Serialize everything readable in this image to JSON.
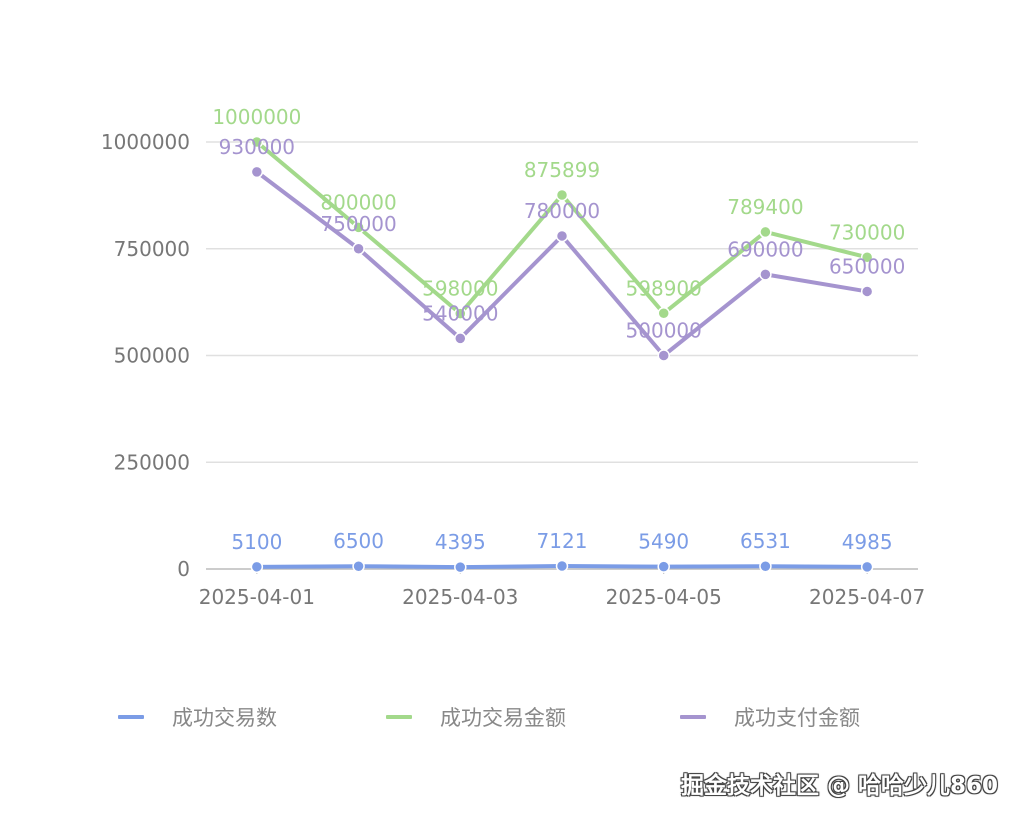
{
  "chart_data": {
    "type": "line",
    "title": "",
    "xlabel": "",
    "ylabel": "",
    "categories": [
      "2025-04-01",
      "2025-04-02",
      "2025-04-03",
      "2025-04-04",
      "2025-04-05",
      "2025-04-06",
      "2025-04-07"
    ],
    "x_tick_labels": [
      "2025-04-01",
      "2025-04-03",
      "2025-04-05",
      "2025-04-07"
    ],
    "y_ticks": [
      0,
      250000,
      500000,
      750000,
      1000000
    ],
    "y_tick_labels": [
      "0",
      "250000",
      "500000",
      "750000",
      "1000000"
    ],
    "ylim": [
      0,
      1000000
    ],
    "grid": true,
    "legend_position": "bottom",
    "series": [
      {
        "name": "成功交易数",
        "color": "#7b9ce6",
        "values": [
          5100,
          6500,
          4395,
          7121,
          5490,
          6531,
          4985
        ],
        "labels_above": true
      },
      {
        "name": "成功交易金额",
        "color": "#a3d98b",
        "values": [
          1000000,
          800000,
          598000,
          875899,
          598900,
          789400,
          730000
        ],
        "labels_above": true
      },
      {
        "name": "成功支付金额",
        "color": "#a594cf",
        "values": [
          930000,
          750000,
          540000,
          780000,
          500000,
          690000,
          650000
        ],
        "labels_above": true
      }
    ]
  },
  "legend": {
    "items": [
      {
        "label": "成功交易数",
        "color": "#7b9ce6"
      },
      {
        "label": "成功交易金额",
        "color": "#a3d98b"
      },
      {
        "label": "成功支付金额",
        "color": "#a594cf"
      }
    ]
  },
  "watermark": "掘金技术社区 @ 哈哈少儿860"
}
